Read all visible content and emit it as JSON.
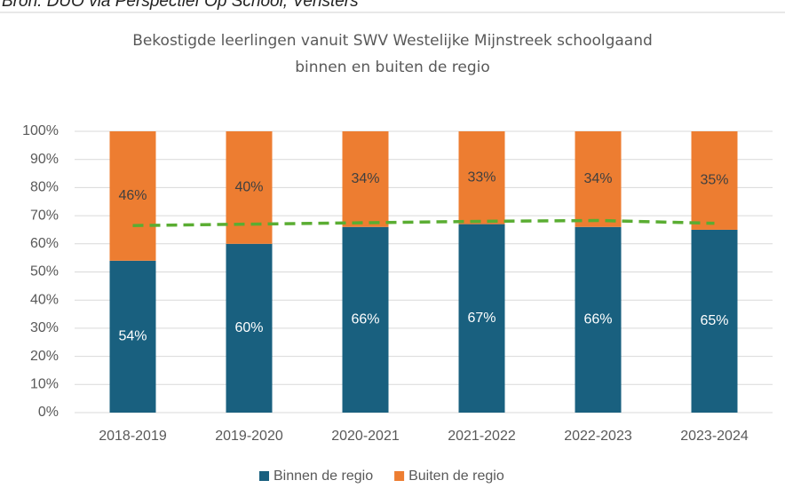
{
  "source": "Bron: DUO via Perspectief Op School, Vensters",
  "chart_data": {
    "type": "stacked_bar",
    "title": [
      "Bekostigde leerlingen vanuit SWV Westelijke Mijnstreek schoolgaand",
      "binnen en buiten de regio"
    ],
    "categories": [
      "2018-2019",
      "2019-2020",
      "2020-2021",
      "2021-2022",
      "2022-2023",
      "2023-2024"
    ],
    "series": [
      {
        "name": "Binnen de regio",
        "color": "#19607f",
        "values": [
          54,
          60,
          66,
          67,
          66,
          65
        ],
        "value_labels": [
          "54%",
          "60%",
          "66%",
          "67%",
          "66%",
          "65%"
        ]
      },
      {
        "name": "Buiten de regio",
        "color": "#ed7d31",
        "values": [
          46,
          40,
          34,
          33,
          34,
          35
        ],
        "value_labels": [
          "46%",
          "40%",
          "34%",
          "33%",
          "34%",
          "35%"
        ]
      }
    ],
    "trend_line": {
      "color": "#5aad32",
      "values": [
        66.5,
        67,
        67.5,
        68,
        68.3,
        67.3
      ]
    },
    "ylim": [
      0,
      100
    ],
    "yticks": [
      {
        "value": 0,
        "label": "0%"
      },
      {
        "value": 10,
        "label": "10%"
      },
      {
        "value": 20,
        "label": "20%"
      },
      {
        "value": 30,
        "label": "30%"
      },
      {
        "value": 40,
        "label": "40%"
      },
      {
        "value": 50,
        "label": "50%"
      },
      {
        "value": 60,
        "label": "60%"
      },
      {
        "value": 70,
        "label": "70%"
      },
      {
        "value": 80,
        "label": "80%"
      },
      {
        "value": 90,
        "label": "90%"
      },
      {
        "value": 100,
        "label": "100%"
      }
    ],
    "grid": true,
    "legend": "bottom"
  }
}
